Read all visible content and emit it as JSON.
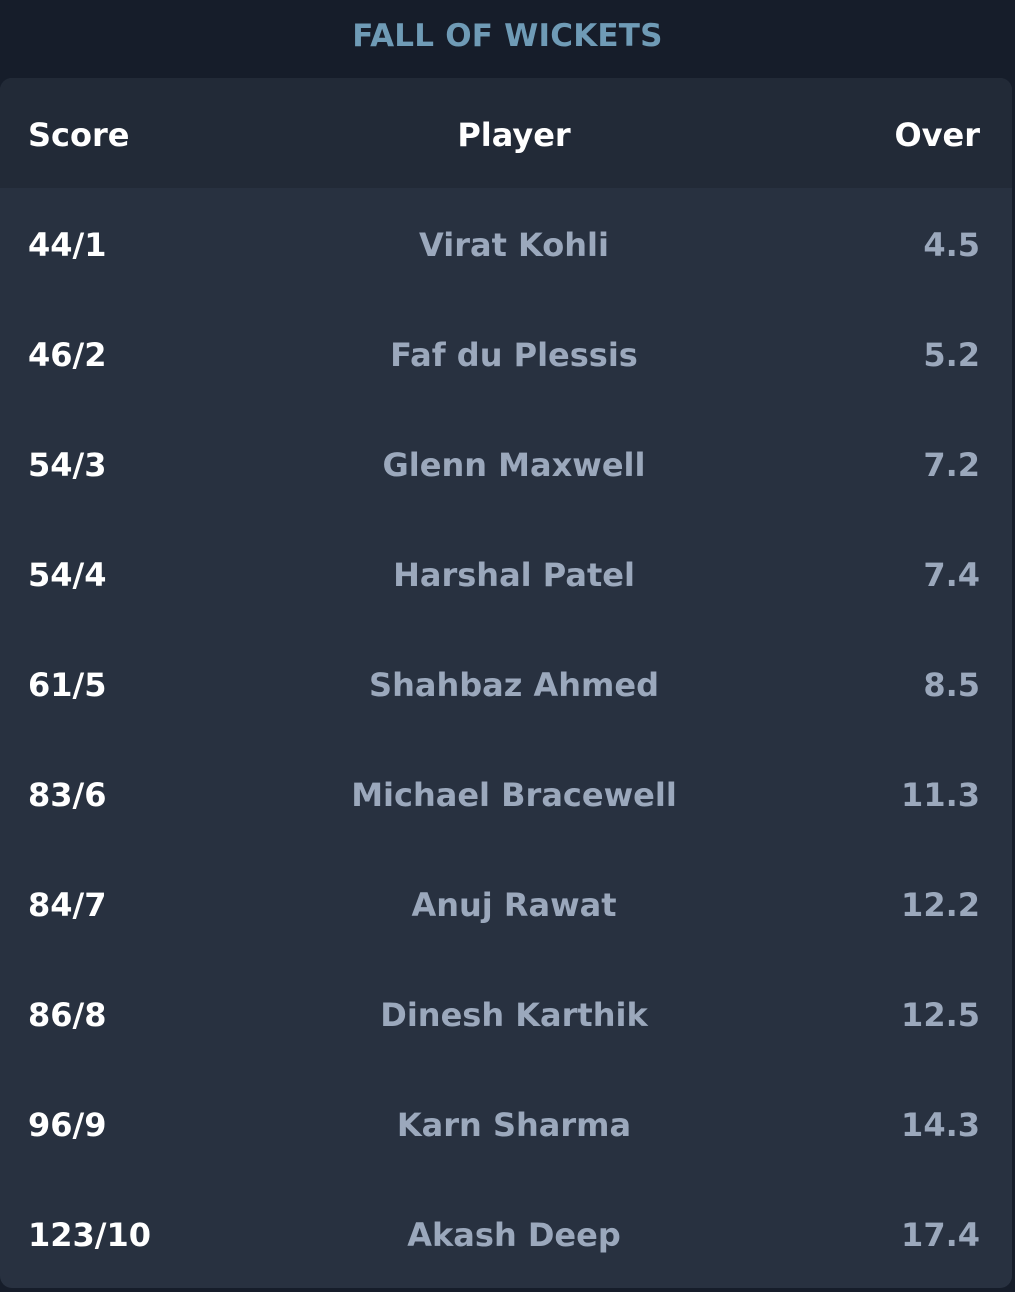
{
  "section": {
    "title": "FALL OF WICKETS"
  },
  "table": {
    "headers": {
      "score": "Score",
      "player": "Player",
      "over": "Over"
    },
    "rows": [
      {
        "score": "44/1",
        "player": "Virat Kohli",
        "over": "4.5"
      },
      {
        "score": "46/2",
        "player": "Faf du Plessis",
        "over": "5.2"
      },
      {
        "score": "54/3",
        "player": "Glenn Maxwell",
        "over": "7.2"
      },
      {
        "score": "54/4",
        "player": "Harshal Patel",
        "over": "7.4"
      },
      {
        "score": "61/5",
        "player": "Shahbaz Ahmed",
        "over": "8.5"
      },
      {
        "score": "83/6",
        "player": "Michael Bracewell",
        "over": "11.3"
      },
      {
        "score": "84/7",
        "player": "Anuj Rawat",
        "over": "12.2"
      },
      {
        "score": "86/8",
        "player": "Dinesh Karthik",
        "over": "12.5"
      },
      {
        "score": "96/9",
        "player": "Karn Sharma",
        "over": "14.3"
      },
      {
        "score": "123/10",
        "player": "Akash Deep",
        "over": "17.4"
      }
    ]
  },
  "colors": {
    "background": "#161d2a",
    "card": "#283140",
    "header": "#222a37",
    "title": "#6f9bb6",
    "muted_text": "#9ba8bc",
    "primary_text": "#ffffff"
  }
}
